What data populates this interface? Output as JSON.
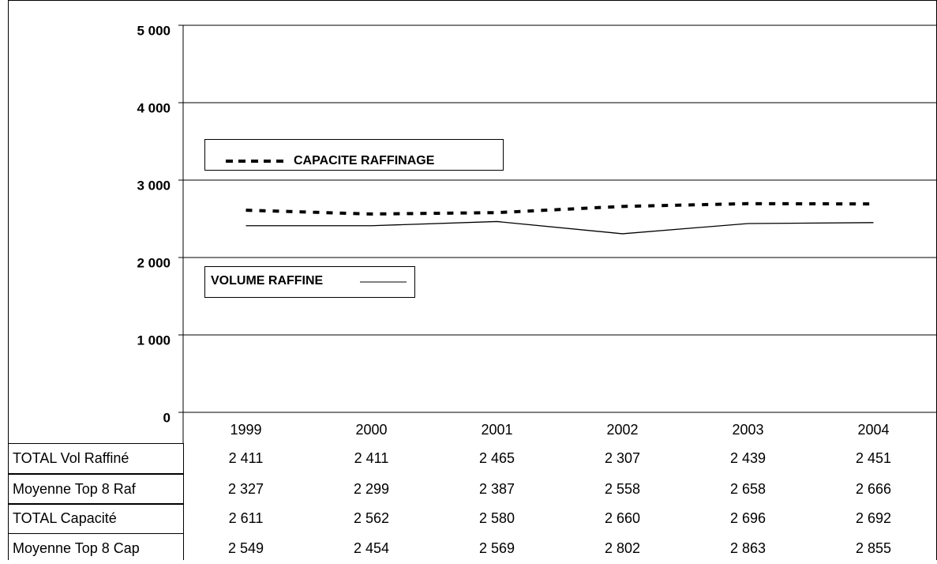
{
  "chart_data": {
    "type": "line",
    "categories": [
      "1999",
      "2000",
      "2001",
      "2002",
      "2003",
      "2004"
    ],
    "series": [
      {
        "name": "TOTAL Vol Raffiné",
        "color": "#000000",
        "line": "solid",
        "values": [
          2411,
          2411,
          2465,
          2307,
          2439,
          2451
        ],
        "value_labels": [
          "2 411",
          "2 411",
          "2 465",
          "2 307",
          "2 439",
          "2 451"
        ]
      },
      {
        "name": "Moyenne Top 8 Raf",
        "values": [
          2327,
          2299,
          2387,
          2558,
          2658,
          2666
        ],
        "value_labels": [
          "2 327",
          "2 299",
          "2 387",
          "2 558",
          "2 658",
          "2 666"
        ]
      },
      {
        "name": "TOTAL Capacité",
        "color": "#000000",
        "line": "dotted",
        "values": [
          2611,
          2562,
          2580,
          2660,
          2696,
          2692
        ],
        "value_labels": [
          "2 611",
          "2 562",
          "2 580",
          "2 660",
          "2 696",
          "2 692"
        ]
      },
      {
        "name": "Moyenne Top 8 Cap",
        "values": [
          2549,
          2454,
          2569,
          2802,
          2863,
          2855
        ],
        "value_labels": [
          "2 549",
          "2 454",
          "2 569",
          "2 802",
          "2 863",
          "2 855"
        ]
      }
    ],
    "ylim": [
      0,
      5000
    ],
    "yticks": [
      {
        "value": 0,
        "label": "0"
      },
      {
        "value": 1000,
        "label": "1 000"
      },
      {
        "value": 2000,
        "label": "2 000"
      },
      {
        "value": 3000,
        "label": "3 000"
      },
      {
        "value": 4000,
        "label": "4 000"
      },
      {
        "value": 5000,
        "label": "5 000"
      }
    ],
    "grid": true,
    "annotations": [
      {
        "text": "CAPACITE RAFFINAGE"
      },
      {
        "text": "VOLUME RAFFINE"
      }
    ]
  }
}
